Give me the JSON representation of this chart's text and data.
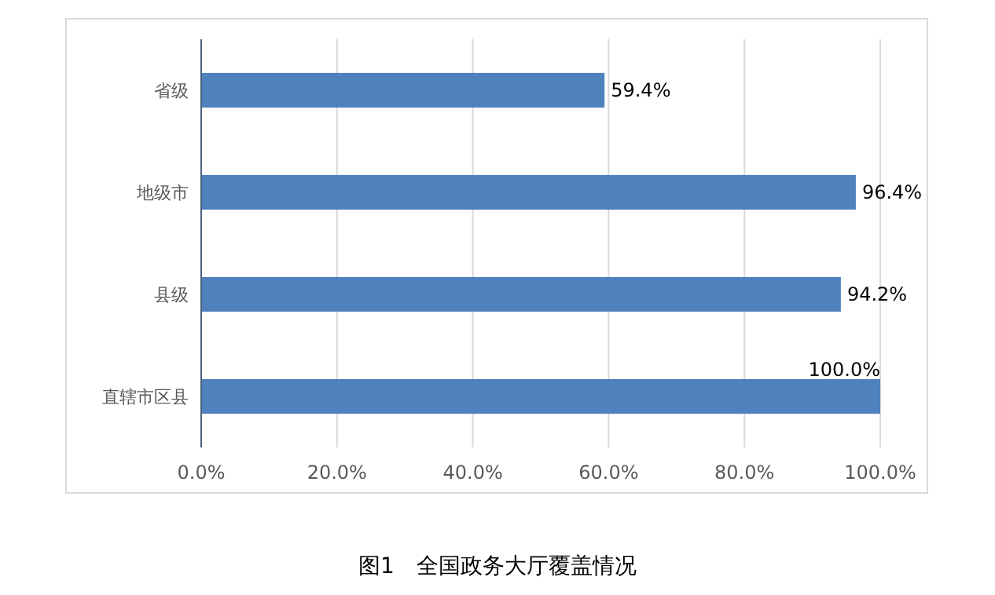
{
  "chart_data": {
    "type": "bar",
    "orientation": "horizontal",
    "categories": [
      "省级",
      "地级市",
      "县级",
      "直辖市区县"
    ],
    "values": [
      59.4,
      96.4,
      94.2,
      100.0
    ],
    "value_labels": [
      "59.4%",
      "96.4%",
      "94.2%",
      "100.0%"
    ],
    "color": "#4f81bd",
    "xlim": [
      0,
      100
    ],
    "xticks": [
      {
        "value": 0,
        "label": "0.0%"
      },
      {
        "value": 20,
        "label": "20.0%"
      },
      {
        "value": 40,
        "label": "40.0%"
      },
      {
        "value": 60,
        "label": "60.0%"
      },
      {
        "value": 80,
        "label": "80.0%"
      },
      {
        "value": 100,
        "label": "100.0%"
      }
    ],
    "grid": "x",
    "annotations": [
      "图1　全国政务大厅覆盖情况"
    ]
  }
}
